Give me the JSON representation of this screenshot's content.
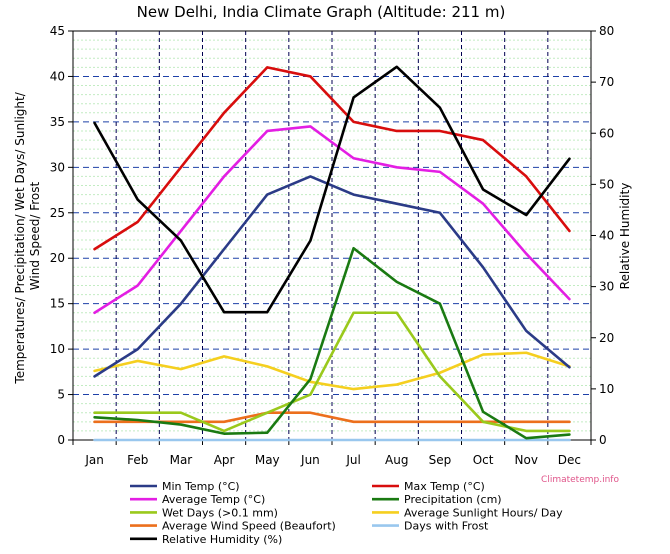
{
  "chart_data": {
    "type": "line",
    "title": "New Delhi, India Climate Graph (Altitude: 211 m)",
    "ylabel_left": "Temperatures/ Precipitation/ Wet Days/ Sunlight/ Wind Speed/ Frost",
    "ylabel_left_lines": [
      "Temperatures/ Precipitation/ Wet Days/ Sunlight/",
      "Wind Speed/ Frost"
    ],
    "ylabel_right": "Relative Humidity",
    "ylim_left": [
      0,
      45
    ],
    "yticks_left": [
      0,
      5,
      10,
      15,
      20,
      25,
      30,
      35,
      40,
      45
    ],
    "ylim_right": [
      0,
      80
    ],
    "yticks_right": [
      0,
      10,
      20,
      30,
      40,
      50,
      60,
      70,
      80
    ],
    "categories": [
      "Jan",
      "Feb",
      "Mar",
      "Apr",
      "May",
      "Jun",
      "Jul",
      "Aug",
      "Sep",
      "Oct",
      "Nov",
      "Dec"
    ],
    "watermark": "Climatetemp.info",
    "series": [
      {
        "key": "avg_wind",
        "name": "Average Wind Speed (Beaufort)",
        "color": "#ec6f1c",
        "axis": "left",
        "values": [
          2,
          2,
          2,
          2,
          3,
          3,
          2,
          2,
          2,
          2,
          2,
          2
        ]
      },
      {
        "key": "frost",
        "name": "Days with Frost",
        "color": "#99c7ee",
        "axis": "left",
        "values": [
          0,
          0,
          0,
          0,
          0,
          0,
          0,
          0,
          0,
          0,
          0,
          0
        ]
      },
      {
        "key": "sunlight",
        "name": "Average Sunlight Hours/ Day",
        "color": "#f5cf1f",
        "axis": "left",
        "values": [
          7.6,
          8.7,
          7.8,
          9.2,
          8.1,
          6.4,
          5.6,
          6.1,
          7.4,
          9.4,
          9.6,
          8.1
        ]
      },
      {
        "key": "wet_days",
        "name": "Wet Days (>0.1 mm)",
        "color": "#9ac91c",
        "axis": "left",
        "values": [
          3,
          3,
          3,
          1,
          3,
          5,
          14,
          14,
          7,
          2,
          1,
          1
        ]
      },
      {
        "key": "precip",
        "name": "Precipitation (cm)",
        "color": "#1a7a12",
        "axis": "left",
        "values": [
          2.5,
          2.2,
          1.7,
          0.7,
          0.8,
          6.7,
          21.1,
          17.4,
          15.0,
          3.1,
          0.2,
          0.6
        ]
      },
      {
        "key": "min_temp",
        "name": "Min Temp (°C)",
        "color": "#2b3b87",
        "axis": "left",
        "values": [
          7,
          10,
          15,
          21,
          27,
          29,
          27,
          26,
          25,
          19,
          12,
          8
        ]
      },
      {
        "key": "avg_temp",
        "name": "Average Temp (°C)",
        "color": "#e31ee3",
        "axis": "left",
        "values": [
          14,
          17,
          23,
          29,
          34,
          34.5,
          31,
          30,
          29.5,
          26,
          20.5,
          15.5
        ]
      },
      {
        "key": "max_temp",
        "name": "Max Temp (°C)",
        "color": "#d80d0d",
        "axis": "left",
        "values": [
          21,
          24,
          30,
          36,
          41,
          40,
          35,
          34,
          34,
          33,
          29,
          23
        ]
      },
      {
        "key": "humidity",
        "name": "Relative Humidity (%)",
        "color": "#000000",
        "axis": "right",
        "values": [
          62,
          47,
          39,
          25,
          25,
          39,
          67,
          73,
          65,
          49,
          44,
          55
        ]
      }
    ],
    "legend_order": [
      "min_temp",
      "max_temp",
      "avg_temp",
      "precip",
      "wet_days",
      "sunlight",
      "avg_wind",
      "frost",
      "humidity"
    ]
  }
}
